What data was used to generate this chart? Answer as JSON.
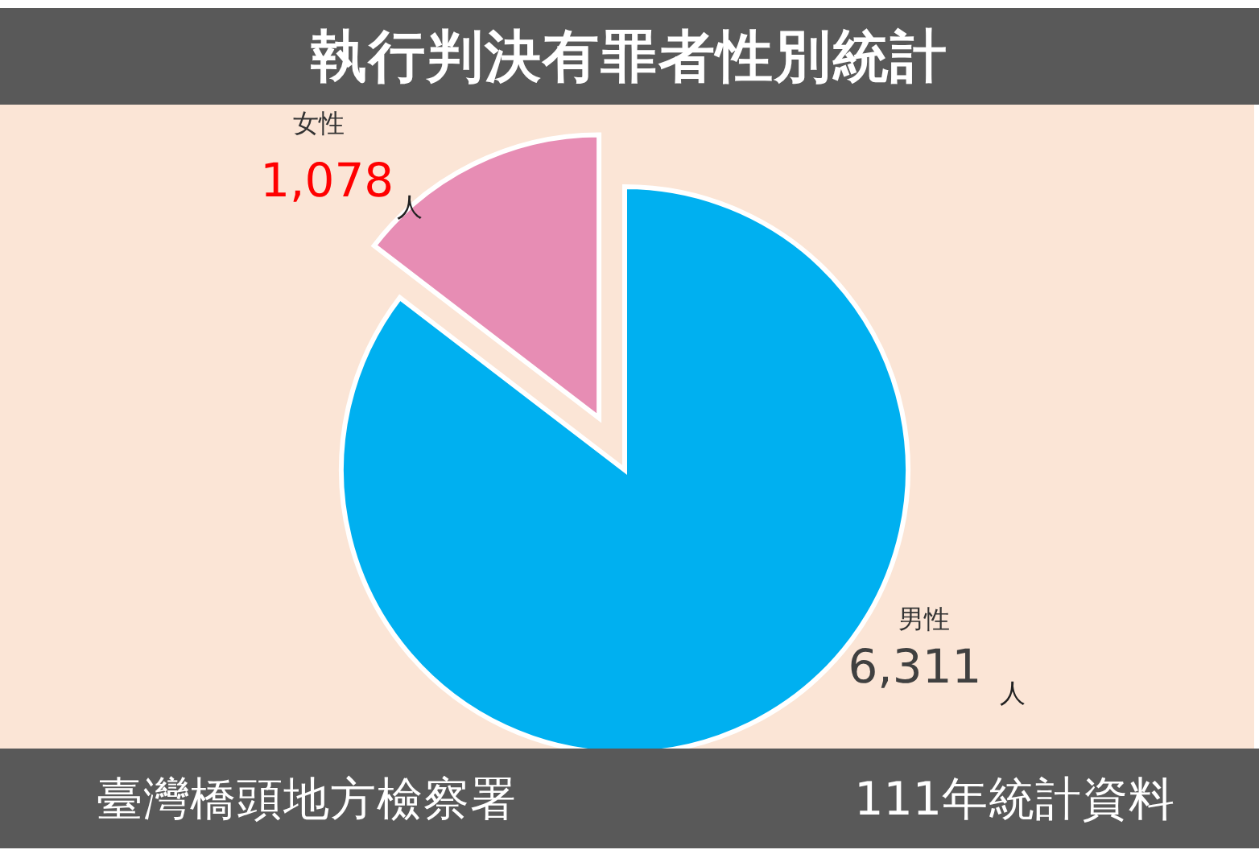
{
  "chart_data": {
    "type": "pie",
    "title": "執行判決有罪者性別統計",
    "categories": [
      "女性",
      "男性"
    ],
    "values": [
      1078,
      6311
    ],
    "colors": [
      "#e78db4",
      "#00b0f0"
    ],
    "value_labels": [
      "1,078$_{人}$",
      "6,311 $_{人}$"
    ],
    "annotations": [
      "臺灣橋頭地方檢察署",
      "111年統計資料"
    ]
  }
}
